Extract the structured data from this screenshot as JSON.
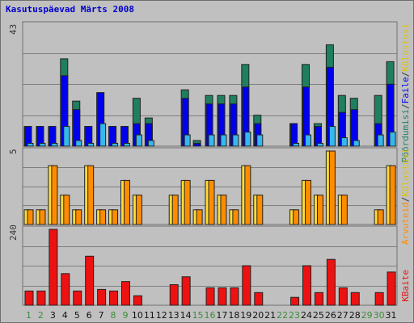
{
  "chart_data": {
    "type": "bar",
    "title": "Kasutuspäevad Märts 2008",
    "categories": [
      "1",
      "2",
      "3",
      "4",
      "5",
      "6",
      "7",
      "8",
      "9",
      "10",
      "11",
      "12",
      "13",
      "14",
      "15",
      "16",
      "17",
      "18",
      "19",
      "20",
      "21",
      "22",
      "23",
      "24",
      "25",
      "26",
      "27",
      "28",
      "29",
      "30",
      "31"
    ],
    "weekend_days": [
      "1",
      "2",
      "8",
      "9",
      "15",
      "16",
      "22",
      "23",
      "29",
      "30"
    ],
    "panels": [
      {
        "ymax_label": "43",
        "ymax": 43,
        "legend": [
          "Pöördumisi",
          "Faile",
          "Külastusi"
        ],
        "series": [
          {
            "name": "Pöördumisi",
            "color": "#1f7f5f",
            "values": [
              7,
              7,
              7,
              31,
              16,
              7,
              19,
              7,
              7,
              17,
              10,
              0,
              0,
              20,
              2,
              18,
              18,
              18,
              29,
              11,
              0,
              0,
              8,
              29,
              8,
              36,
              18,
              17,
              0,
              18,
              30
            ]
          },
          {
            "name": "Faile",
            "color": "#0000ee",
            "values": [
              7,
              7,
              7,
              25,
              13,
              7,
              19,
              7,
              7,
              8,
              8,
              0,
              0,
              17,
              1,
              15,
              15,
              15,
              21,
              8,
              0,
              0,
              8,
              21,
              7,
              28,
              12,
              13,
              0,
              8,
              22
            ]
          },
          {
            "name": "Külastusi",
            "color": "#35b8ef",
            "values": [
              1,
              1,
              1,
              7,
              2,
              1,
              8,
              1,
              1,
              4,
              2,
              0,
              0,
              4,
              0,
              4,
              4,
              4,
              5,
              4,
              0,
              0,
              1,
              4,
              1,
              7,
              3,
              2,
              0,
              4,
              5
            ]
          }
        ]
      },
      {
        "ymax_label": "5",
        "ymax": 5,
        "legend": [
          "Arvuteid",
          "Külastusi"
        ],
        "series": [
          {
            "name": "Arvuteid",
            "color": "#ff8c00",
            "values": [
              1,
              1,
              4,
              2,
              1,
              4,
              1,
              1,
              3,
              2,
              0,
              0,
              2,
              3,
              1,
              3,
              2,
              1,
              4,
              2,
              0,
              0,
              1,
              3,
              2,
              5,
              2,
              0,
              0,
              1,
              4
            ]
          },
          {
            "name": "Külastusi",
            "color": "#ffd400",
            "values": [
              1,
              1,
              4,
              2,
              1,
              4,
              1,
              1,
              3,
              2,
              0,
              0,
              2,
              3,
              1,
              3,
              2,
              1,
              4,
              2,
              0,
              0,
              1,
              3,
              2,
              5,
              2,
              0,
              0,
              1,
              4
            ]
          }
        ]
      },
      {
        "ymax_label": "240",
        "ymax": 240,
        "legend": [
          "KBaite"
        ],
        "series": [
          {
            "name": "KBaite",
            "color": "#ee1111",
            "values": [
              45,
              45,
              240,
              100,
              45,
              155,
              50,
              45,
              75,
              30,
              0,
              0,
              65,
              90,
              0,
              55,
              55,
              55,
              125,
              40,
              0,
              0,
              25,
              125,
              40,
              145,
              55,
              40,
              0,
              40,
              105
            ]
          }
        ]
      }
    ],
    "colors": {
      "plot_bg": "#c0c0c0",
      "gridline": "#7f7f7f",
      "weekend_label": "#3c8c3c",
      "weekday_label": "#111111",
      "title": "#0000cc"
    },
    "grid": true
  }
}
